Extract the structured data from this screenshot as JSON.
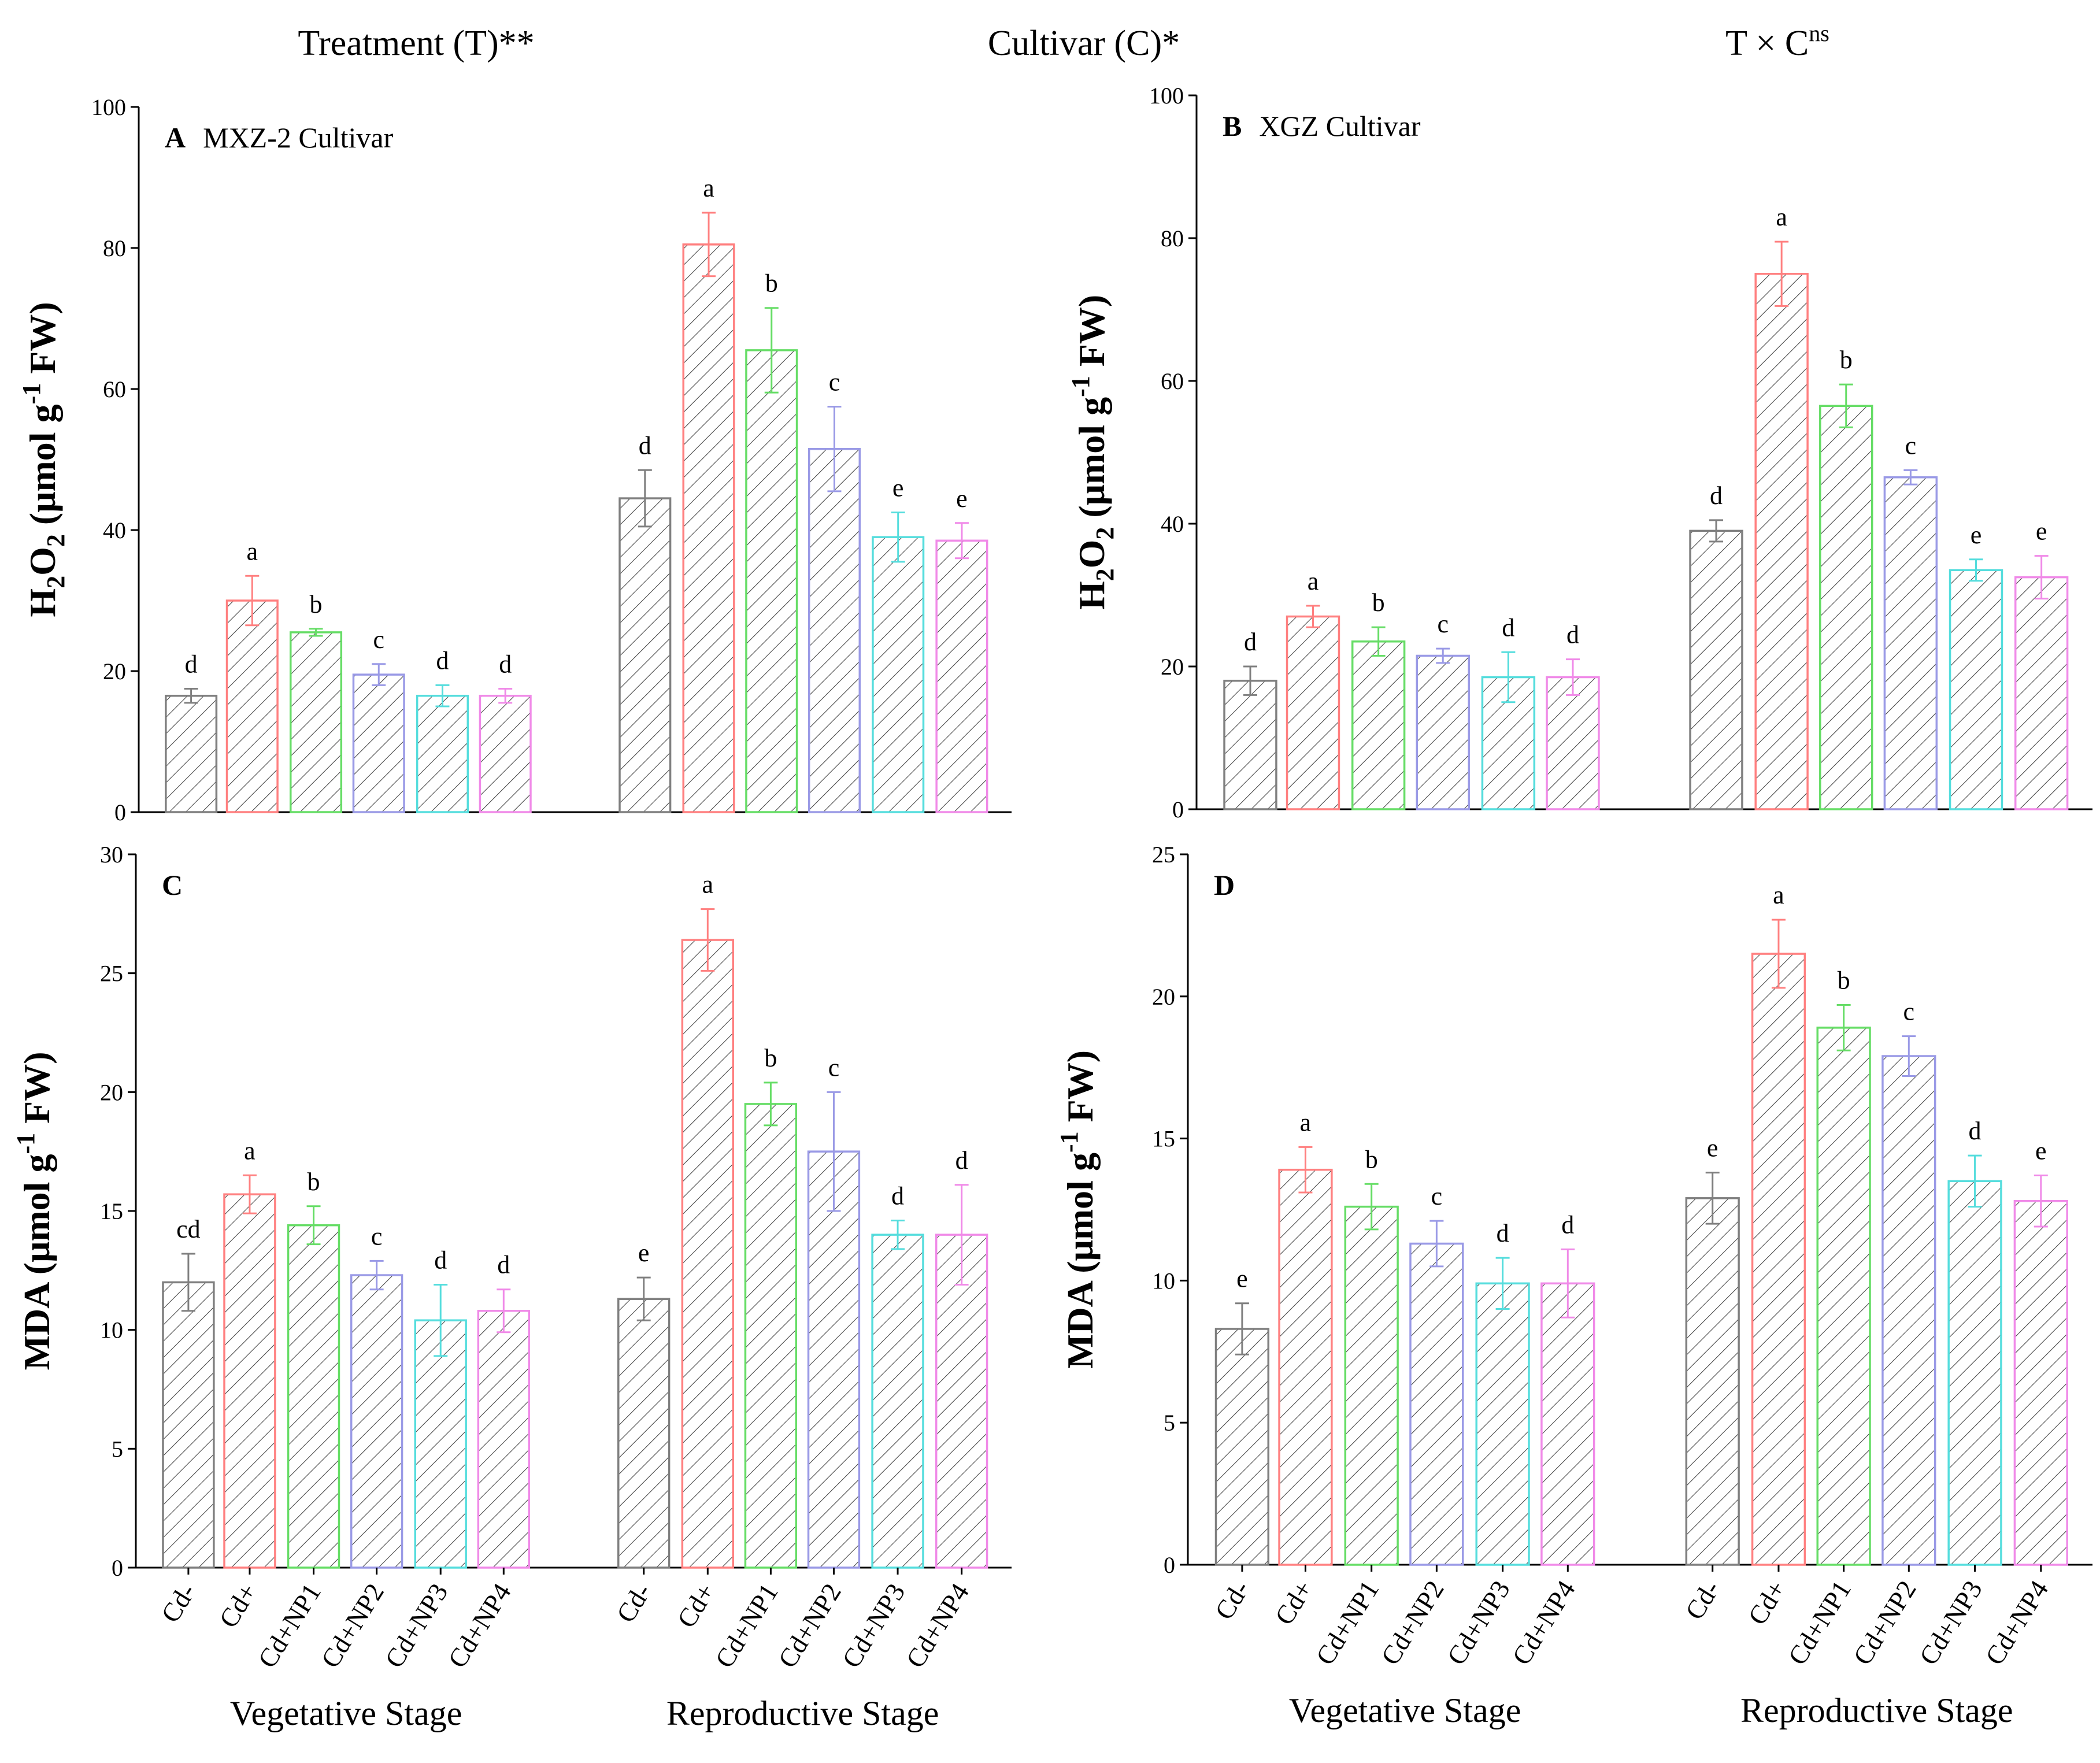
{
  "header": {
    "treatment": "Treatment (T)**",
    "cultivar": "Cultivar (C)*",
    "interaction_main": "T × C",
    "interaction_sup": "ns"
  },
  "series_colors": [
    "#7f7f7f",
    "#ff8080",
    "#66dd66",
    "#9a9ae6",
    "#55dddd",
    "#f08ae8"
  ],
  "categories": [
    "Cd-",
    "Cd+",
    "Cd+NP1",
    "Cd+NP2",
    "Cd+NP3",
    "Cd+NP4"
  ],
  "groups": [
    "Vegetative Stage",
    "Reproductive Stage"
  ],
  "chart_data": [
    {
      "id": "A",
      "type": "bar",
      "title_letter": "A",
      "title": "MXZ-2   Cultivar",
      "ylabel_main": "H",
      "ylabel_sub": "2",
      "ylabel_mid": "O",
      "ylabel_sub2": "2",
      "ylabel_rest": " (μmol g",
      "ylabel_sup": "-1",
      "ylabel_end": " FW)",
      "ylim": [
        0,
        100
      ],
      "yticks": [
        "0",
        "20",
        "40",
        "60",
        "80",
        "100"
      ],
      "groups": [
        {
          "name": "Vegetative Stage",
          "values": [
            16.5,
            30,
            25.5,
            19.5,
            16.5,
            16.5
          ],
          "errors": [
            1,
            3.5,
            0.5,
            1.5,
            1.5,
            1
          ],
          "letters": [
            "d",
            "a",
            "b",
            "c",
            "d",
            "d"
          ]
        },
        {
          "name": "Reproductive Stage",
          "values": [
            44.5,
            80.5,
            65.5,
            51.5,
            39,
            38.5
          ],
          "errors": [
            4,
            4.5,
            6,
            6,
            3.5,
            2.5
          ],
          "letters": [
            "d",
            "a",
            "b",
            "c",
            "e",
            "e"
          ]
        }
      ]
    },
    {
      "id": "B",
      "type": "bar",
      "title_letter": "B",
      "title": "XGZ   Cultivar",
      "ylabel_main": "H",
      "ylabel_sub": "2",
      "ylabel_mid": "O",
      "ylabel_sub2": "2",
      "ylabel_rest": " (μmol g",
      "ylabel_sup": "-1",
      "ylabel_end": " FW)",
      "ylim": [
        0,
        100
      ],
      "yticks": [
        "0",
        "20",
        "40",
        "60",
        "80",
        "100"
      ],
      "groups": [
        {
          "name": "Vegetative Stage",
          "values": [
            18,
            27,
            23.5,
            21.5,
            18.5,
            18.5
          ],
          "errors": [
            2,
            1.5,
            2,
            1,
            3.5,
            2.5
          ],
          "letters": [
            "d",
            "a",
            "b",
            "c",
            "d",
            "d"
          ]
        },
        {
          "name": "Reproductive Stage",
          "values": [
            39,
            75,
            56.5,
            46.5,
            33.5,
            32.5
          ],
          "errors": [
            1.5,
            4.5,
            3,
            1,
            1.5,
            3
          ],
          "letters": [
            "d",
            "a",
            "b",
            "c",
            "e",
            "e"
          ]
        }
      ]
    },
    {
      "id": "C",
      "type": "bar",
      "title_letter": "C",
      "title": "",
      "ylabel_main": "MDA (μmol g",
      "ylabel_sup": "-1",
      "ylabel_end": " FW)",
      "ylim": [
        0,
        30
      ],
      "yticks": [
        "0",
        "5",
        "10",
        "15",
        "20",
        "25",
        "30"
      ],
      "groups": [
        {
          "name": "Vegetative Stage",
          "values": [
            12,
            15.7,
            14.4,
            12.3,
            10.4,
            10.8
          ],
          "errors": [
            1.2,
            0.8,
            0.8,
            0.6,
            1.5,
            0.9
          ],
          "letters": [
            "cd",
            "a",
            "b",
            "c",
            "d",
            "d"
          ]
        },
        {
          "name": "Reproductive Stage",
          "values": [
            11.3,
            26.4,
            19.5,
            17.5,
            14,
            14
          ],
          "errors": [
            0.9,
            1.3,
            0.9,
            2.5,
            0.6,
            2.1
          ],
          "letters": [
            "e",
            "a",
            "b",
            "c",
            "d",
            "d"
          ]
        }
      ]
    },
    {
      "id": "D",
      "type": "bar",
      "title_letter": "D",
      "title": "",
      "ylabel_main": "MDA (μmol g",
      "ylabel_sup": "-1",
      "ylabel_end": " FW)",
      "ylim": [
        0,
        25
      ],
      "yticks": [
        "0",
        "5",
        "10",
        "15",
        "20",
        "25"
      ],
      "groups": [
        {
          "name": "Vegetative Stage",
          "values": [
            8.3,
            13.9,
            12.6,
            11.3,
            9.9,
            9.9
          ],
          "errors": [
            0.9,
            0.8,
            0.8,
            0.8,
            0.9,
            1.2
          ],
          "letters": [
            "e",
            "a",
            "b",
            "c",
            "d",
            "d"
          ]
        },
        {
          "name": "Reproductive Stage",
          "values": [
            12.9,
            21.5,
            18.9,
            17.9,
            13.5,
            12.8
          ],
          "errors": [
            0.9,
            1.2,
            0.8,
            0.7,
            0.9,
            0.9
          ],
          "letters": [
            "e",
            "a",
            "b",
            "c",
            "d",
            "e"
          ]
        }
      ]
    }
  ]
}
